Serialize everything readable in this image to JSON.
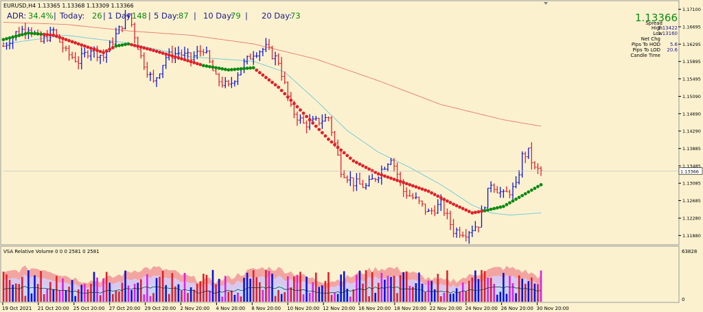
{
  "window": {
    "symbol_header": "EURUSD,H4  1.13365 1.13368 1.13309 1.13366",
    "colors": {
      "background": "#fbf1cf",
      "bull_candle": "#0a12d8",
      "bear_candle": "#e0202a",
      "ma_up": "#0a8a10",
      "ma_down": "#e0202a",
      "ma_slow": "#e67a6a",
      "ma_fast": "#6cc8d8",
      "price_label_bg": "#ffffff"
    }
  },
  "adr_bar": {
    "adr_label": "ADR:",
    "adr_value": "34.4%",
    "today_label": "Today:",
    "today_value": "26",
    "day1_label": "1 Day:",
    "day1_value": "148",
    "day5_label": "5 Day:",
    "day5_value": "87",
    "day10_label": "10 Day:",
    "day10_value": "79",
    "day20_label": "20 Day:",
    "day20_value": "73",
    "separator": "|"
  },
  "info_panel": {
    "price": "1.13366",
    "spread_label": "Spread",
    "spread_value": "",
    "high_label": "High",
    "high_value": "1.13422",
    "low_label": "Low",
    "low_value": "1.13160",
    "netchg_label": "Net Chg",
    "netchg_value": "",
    "pips_hod_label": "Pips To HOD",
    "pips_hod_value": "5.6",
    "pips_lod_label": "Pips To LOD",
    "pips_lod_value": "20.6",
    "candle_time_label": "Candle Time",
    "candle_time_value": "",
    "value_color": "#c8c800"
  },
  "volume_panel": {
    "label": "VSA Relative Volume 0 0 0 2581 0 2581",
    "ymax_label": "63828",
    "ymin_label": "0"
  },
  "chart_data": {
    "type": "candlestick",
    "symbol": "EURUSD",
    "timeframe": "H4",
    "ylim": [
      1.1168,
      1.1725
    ],
    "y_ticks": [
      "1.17100",
      "1.16695",
      "1.16295",
      "1.15895",
      "1.15495",
      "1.15090",
      "1.14690",
      "1.14290",
      "1.13885",
      "1.13485",
      "1.13085",
      "1.12685",
      "1.12280",
      "1.11880"
    ],
    "current_price_label": "1.13366",
    "current_price": 1.13366,
    "x_labels": [
      "19 Oct 2021",
      "21 Oct 20:00",
      "25 Oct 20:00",
      "27 Oct 20:00",
      "29 Oct 20:00",
      "2 Nov 20:00",
      "4 Nov 20:00",
      "8 Nov 20:00",
      "10 Nov 20:00",
      "12 Nov 20:00",
      "16 Nov 20:00",
      "18 Nov 20:00",
      "22 Nov 20:00",
      "24 Nov 20:00",
      "26 Nov 20:00",
      "30 Nov 20:00"
    ],
    "price_path": [
      [
        0,
        1.1625
      ],
      [
        4,
        1.1655
      ],
      [
        8,
        1.167
      ],
      [
        12,
        1.1635
      ],
      [
        16,
        1.166
      ],
      [
        20,
        1.161
      ],
      [
        24,
        1.159
      ],
      [
        28,
        1.162
      ],
      [
        32,
        1.16
      ],
      [
        36,
        1.165
      ],
      [
        40,
        1.17
      ],
      [
        44,
        1.16
      ],
      [
        48,
        1.154
      ],
      [
        52,
        1.16
      ],
      [
        56,
        1.161
      ],
      [
        60,
        1.1595
      ],
      [
        64,
        1.162
      ],
      [
        68,
        1.155
      ],
      [
        72,
        1.153
      ],
      [
        76,
        1.1575
      ],
      [
        80,
        1.161
      ],
      [
        84,
        1.162
      ],
      [
        88,
        1.159
      ],
      [
        92,
        1.148
      ],
      [
        96,
        1.1445
      ],
      [
        100,
        1.145
      ],
      [
        104,
        1.146
      ],
      [
        108,
        1.134
      ],
      [
        112,
        1.131
      ],
      [
        116,
        1.13
      ],
      [
        120,
        1.133
      ],
      [
        124,
        1.137
      ],
      [
        128,
        1.129
      ],
      [
        132,
        1.127
      ],
      [
        136,
        1.124
      ],
      [
        140,
        1.126
      ],
      [
        144,
        1.12
      ],
      [
        148,
        1.1195
      ],
      [
        152,
        1.1215
      ],
      [
        156,
        1.131
      ],
      [
        160,
        1.128
      ],
      [
        164,
        1.13
      ],
      [
        166,
        1.137
      ],
      [
        168,
        1.138
      ],
      [
        170,
        1.134
      ],
      [
        172,
        1.1337
      ]
    ],
    "series": [
      {
        "name": "",
        "type": "ma_slow",
        "points": [
          [
            0,
            1.168
          ],
          [
            20,
            1.1675
          ],
          [
            40,
            1.166
          ],
          [
            60,
            1.165
          ],
          [
            80,
            1.163
          ],
          [
            100,
            1.1595
          ],
          [
            120,
            1.1545
          ],
          [
            140,
            1.149
          ],
          [
            160,
            1.1455
          ],
          [
            172,
            1.144
          ]
        ]
      },
      {
        "name": "",
        "type": "ma_fast",
        "points": [
          [
            0,
            1.163
          ],
          [
            20,
            1.165
          ],
          [
            40,
            1.1632
          ],
          [
            60,
            1.16
          ],
          [
            80,
            1.159
          ],
          [
            90,
            1.1565
          ],
          [
            100,
            1.15
          ],
          [
            110,
            1.143
          ],
          [
            120,
            1.138
          ],
          [
            130,
            1.1345
          ],
          [
            140,
            1.1305
          ],
          [
            150,
            1.1258
          ],
          [
            156,
            1.124
          ],
          [
            162,
            1.1235
          ],
          [
            172,
            1.124
          ]
        ]
      },
      {
        "name": "",
        "type": "trend_ma",
        "points": [
          [
            0,
            1.164
          ],
          [
            8,
            1.1655
          ],
          [
            16,
            1.165
          ],
          [
            24,
            1.163
          ],
          [
            32,
            1.161
          ],
          [
            36,
            1.1625
          ],
          [
            40,
            1.163
          ],
          [
            48,
            1.1615
          ],
          [
            56,
            1.1598
          ],
          [
            64,
            1.158
          ],
          [
            72,
            1.157
          ],
          [
            80,
            1.1575
          ],
          [
            88,
            1.153
          ],
          [
            96,
            1.147
          ],
          [
            104,
            1.141
          ],
          [
            112,
            1.136
          ],
          [
            120,
            1.133
          ],
          [
            128,
            1.131
          ],
          [
            136,
            1.129
          ],
          [
            144,
            1.126
          ],
          [
            150,
            1.124
          ],
          [
            154,
            1.1245
          ],
          [
            160,
            1.1255
          ],
          [
            166,
            1.128
          ],
          [
            172,
            1.1305
          ]
        ],
        "up_ranges": [
          [
            0,
            12
          ],
          [
            36,
            40
          ],
          [
            64,
            80
          ],
          [
            154,
            172
          ]
        ]
      }
    ]
  }
}
